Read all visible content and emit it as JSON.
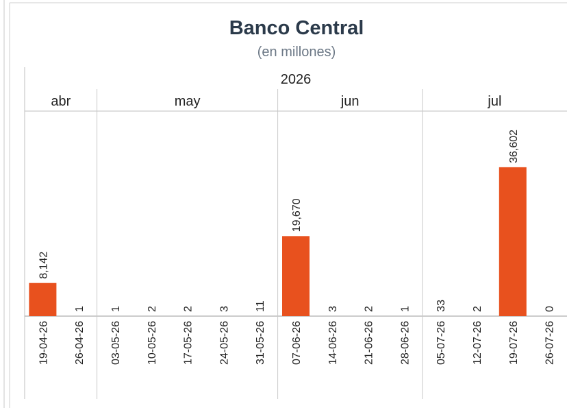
{
  "chart_data": {
    "type": "bar",
    "title": "Banco Central",
    "subtitle": "(en millones)",
    "year": "2026",
    "months": [
      {
        "label": "abr",
        "count": 2
      },
      {
        "label": "may",
        "count": 5
      },
      {
        "label": "jun",
        "count": 4
      },
      {
        "label": "jul",
        "count": 4
      }
    ],
    "categories": [
      "19-04-26",
      "26-04-26",
      "03-05-26",
      "10-05-26",
      "17-05-26",
      "24-05-26",
      "31-05-26",
      "07-06-26",
      "14-06-26",
      "21-06-26",
      "28-06-26",
      "05-07-26",
      "12-07-26",
      "19-07-26",
      "26-07-26"
    ],
    "values": [
      8142,
      1,
      1,
      2,
      2,
      3,
      11,
      19670,
      3,
      2,
      1,
      33,
      2,
      36602,
      0
    ],
    "value_labels": [
      "8,142",
      "1",
      "1",
      "2",
      "2",
      "3",
      "11",
      "19,670",
      "3",
      "2",
      "1",
      "33",
      "2",
      "36,602",
      "0"
    ],
    "ylim": [
      0,
      44000
    ],
    "bar_color": "#e8511e",
    "grid": false
  }
}
